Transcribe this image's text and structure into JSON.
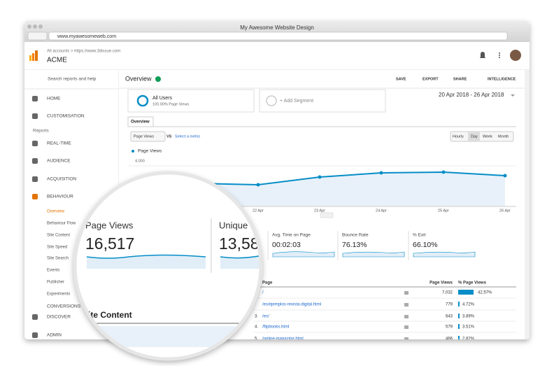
{
  "browser": {
    "title": "My Awesome Website Design",
    "url": "www.myawesomeweb.com"
  },
  "header": {
    "breadcrumb": "All accounts > https://www.3dissue.com",
    "account": "ACME"
  },
  "sidebar": {
    "search": "Search reports and help",
    "items": [
      "HOME",
      "CUSTOMISATION"
    ],
    "section": "Reports",
    "reports": [
      "REAL-TIME",
      "AUDIENCE",
      "ACQUISITION",
      "BEHAVIOUR"
    ],
    "behaviour": [
      "Overview",
      "Behaviour Flow",
      "Site Content",
      "Site Speed",
      "Site Search",
      "Events",
      "Publisher",
      "Experiments"
    ],
    "bottom": [
      "CONVERSIONS",
      "DISCOVER",
      "ADMIN"
    ]
  },
  "toolbar": {
    "title": "Overview",
    "actions": [
      "SAVE",
      "EXPORT",
      "SHARE",
      "INTELLIGENCE"
    ]
  },
  "segments": {
    "name": "All Users",
    "detail": "100.00% Page Views",
    "add": "+ Add Segment"
  },
  "date_range": "20 Apr 2018 - 26 Apr 2018",
  "tab": "Overview",
  "chart": {
    "metric": "Page Views",
    "vs": "VS",
    "select": "Select a metric",
    "periods": [
      "Hourly",
      "Day",
      "Week",
      "Month"
    ],
    "legend": "Page Views",
    "ytick": "4,000",
    "xlabels": [
      "22 Apr",
      "23 Apr",
      "24 Apr",
      "25 Apr",
      "26 Apr"
    ]
  },
  "metrics": [
    {
      "label": "Avg. Time on Page",
      "value": "00:02:03"
    },
    {
      "label": "Bounce Rate",
      "value": "76.13%"
    },
    {
      "label": "% Exit",
      "value": "66.10%"
    }
  ],
  "table": {
    "headers": [
      "Page",
      "Page Views",
      "% Page Views"
    ],
    "rows": [
      {
        "page": "/",
        "views": "7,032",
        "pct": "42.57%"
      },
      {
        "page": "/es/ejemplos-revista-digital.html",
        "views": "779",
        "pct": "4.72%"
      },
      {
        "rank": "3.",
        "page": "/es/",
        "views": "643",
        "pct": "3.89%"
      },
      {
        "rank": "4.",
        "page": "/flipbooks.html",
        "views": "579",
        "pct": "3.51%"
      },
      {
        "rank": "5.",
        "page": "/online-magazine.html",
        "views": "466",
        "pct": "2.82%"
      }
    ]
  },
  "magnifier": {
    "metrics": [
      {
        "label": "Page Views",
        "value": "16,517"
      },
      {
        "label": "Unique",
        "value": "13,58"
      }
    ],
    "section": "Site Content",
    "row": "ge"
  }
}
